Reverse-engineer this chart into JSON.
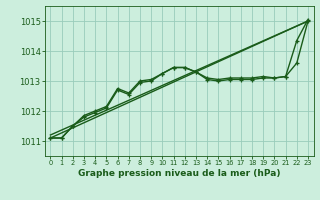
{
  "title": "Graphe pression niveau de la mer (hPa)",
  "bg_color": "#cceedd",
  "grid_color": "#99ccbb",
  "line_color": "#1a5c1a",
  "xlim": [
    -0.5,
    23.5
  ],
  "ylim": [
    1010.5,
    1015.5
  ],
  "yticks": [
    1011,
    1012,
    1013,
    1014,
    1015
  ],
  "xticks": [
    0,
    1,
    2,
    3,
    4,
    5,
    6,
    7,
    8,
    9,
    10,
    11,
    12,
    13,
    14,
    15,
    16,
    17,
    18,
    19,
    20,
    21,
    22,
    23
  ],
  "series": [
    {
      "x": [
        0,
        23
      ],
      "y": [
        1011.1,
        1015.0
      ],
      "marker": false,
      "lw": 1.0
    },
    {
      "x": [
        0,
        23
      ],
      "y": [
        1011.2,
        1015.0
      ],
      "marker": false,
      "lw": 1.0
    },
    {
      "x": [
        0,
        1,
        2,
        3,
        4,
        5,
        6,
        7,
        8,
        9,
        10,
        11,
        12,
        13,
        14,
        15,
        16,
        17,
        18,
        19,
        20,
        21,
        22,
        23
      ],
      "y": [
        1011.1,
        1011.1,
        1011.5,
        1011.8,
        1011.95,
        1012.1,
        1012.7,
        1012.55,
        1012.95,
        1013.0,
        1013.25,
        1013.45,
        1013.45,
        1013.3,
        1013.05,
        1013.0,
        1013.05,
        1013.05,
        1013.05,
        1013.1,
        1013.1,
        1013.15,
        1013.6,
        1015.0
      ],
      "marker": true,
      "lw": 1.0
    },
    {
      "x": [
        0,
        1,
        2,
        3,
        4,
        5,
        6,
        7,
        8,
        9,
        10,
        11,
        12,
        13,
        14,
        15,
        16,
        17,
        18,
        19,
        20,
        21,
        22,
        23
      ],
      "y": [
        1011.1,
        1011.1,
        1011.5,
        1011.85,
        1012.0,
        1012.15,
        1012.75,
        1012.6,
        1013.0,
        1013.05,
        1013.25,
        1013.45,
        1013.45,
        1013.3,
        1013.1,
        1013.05,
        1013.1,
        1013.1,
        1013.1,
        1013.15,
        1013.1,
        1013.15,
        1014.35,
        1015.05
      ],
      "marker": true,
      "lw": 1.0
    }
  ]
}
